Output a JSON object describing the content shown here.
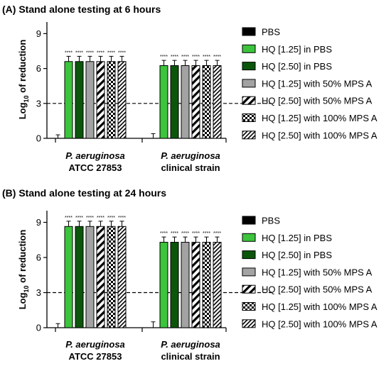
{
  "legend": [
    {
      "label": "PBS",
      "pattern": "solid-black"
    },
    {
      "label": "HQ [1.25] in PBS",
      "pattern": "solid-green"
    },
    {
      "label": "HQ [2.50] in PBS",
      "pattern": "solid-darkgreen"
    },
    {
      "label": "HQ [1.25] with 50% MPS A",
      "pattern": "solid-grey"
    },
    {
      "label": "HQ [2.50] with 50% MPS A",
      "pattern": "wide-diagonal"
    },
    {
      "label": "HQ [1.25] with 100% MPS A",
      "pattern": "checker"
    },
    {
      "label": "HQ [2.50] with 100% MPS A",
      "pattern": "fine-diagonal"
    }
  ],
  "colors": {
    "PBS": "#000000",
    "HQ_1_25_PBS": "#3cc43c",
    "HQ_2_50_PBS": "#0b560b",
    "HQ_1_25_50MPS": "#a3a3a3",
    "pattern_ink": "#000000"
  },
  "chart_data": [
    {
      "type": "bar",
      "title": "(A)  Stand alone testing at 6 hours",
      "ylabel": "Log10 of reduction",
      "ylabel_main": "Log",
      "ylabel_sub": "10",
      "ylabel_rest": " of reduction",
      "ylim": [
        0,
        10
      ],
      "yticks": [
        "0",
        "3",
        "6",
        "9"
      ],
      "categories": [
        {
          "line1": "P. aeruginosa",
          "line2": "ATCC 27853"
        },
        {
          "line1": "P. aeruginosa",
          "line2": "clinical strain"
        }
      ],
      "threshold": 3,
      "significance": "****",
      "series": [
        {
          "name": "PBS",
          "values": [
            0,
            0
          ],
          "errors": [
            0.3,
            0.4
          ]
        },
        {
          "name": "HQ [1.25] in PBS",
          "values": [
            6.6,
            6.25
          ],
          "errors": [
            0.45,
            0.45
          ]
        },
        {
          "name": "HQ [2.50] in PBS",
          "values": [
            6.6,
            6.25
          ],
          "errors": [
            0.45,
            0.45
          ]
        },
        {
          "name": "HQ [1.25] with 50% MPS A",
          "values": [
            6.6,
            6.25
          ],
          "errors": [
            0.45,
            0.45
          ]
        },
        {
          "name": "HQ [2.50] with 50% MPS A",
          "values": [
            6.6,
            6.25
          ],
          "errors": [
            0.45,
            0.45
          ]
        },
        {
          "name": "HQ [1.25] with 100% MPS A",
          "values": [
            6.6,
            6.25
          ],
          "errors": [
            0.45,
            0.45
          ]
        },
        {
          "name": "HQ [2.50] with 100% MPS A",
          "values": [
            6.6,
            6.25
          ],
          "errors": [
            0.45,
            0.45
          ]
        }
      ]
    },
    {
      "type": "bar",
      "title": "(B)  Stand alone testing at 24 hours",
      "ylabel": "Log10 of reduction",
      "ylabel_main": "Log",
      "ylabel_sub": "10",
      "ylabel_rest": " of reduction",
      "ylim": [
        0,
        10
      ],
      "yticks": [
        "0",
        "3",
        "6",
        "9"
      ],
      "categories": [
        {
          "line1": "P. aeruginosa",
          "line2": "ATCC 27853"
        },
        {
          "line1": "P. aeruginosa",
          "line2": "clinical strain"
        }
      ],
      "threshold": 3,
      "significance": "****",
      "series": [
        {
          "name": "PBS",
          "values": [
            0,
            0
          ],
          "errors": [
            0.35,
            0.5
          ]
        },
        {
          "name": "HQ [1.25] in PBS",
          "values": [
            8.65,
            7.3
          ],
          "errors": [
            0.45,
            0.45
          ]
        },
        {
          "name": "HQ [2.50] in PBS",
          "values": [
            8.65,
            7.3
          ],
          "errors": [
            0.45,
            0.45
          ]
        },
        {
          "name": "HQ [1.25] with 50% MPS A",
          "values": [
            8.65,
            7.3
          ],
          "errors": [
            0.45,
            0.45
          ]
        },
        {
          "name": "HQ [2.50] with 50% MPS A",
          "values": [
            8.65,
            7.3
          ],
          "errors": [
            0.45,
            0.45
          ]
        },
        {
          "name": "HQ [1.25] with 100% MPS A",
          "values": [
            8.65,
            7.3
          ],
          "errors": [
            0.45,
            0.45
          ]
        },
        {
          "name": "HQ [2.50] with 100% MPS A",
          "values": [
            8.65,
            7.3
          ],
          "errors": [
            0.45,
            0.45
          ]
        }
      ]
    }
  ]
}
